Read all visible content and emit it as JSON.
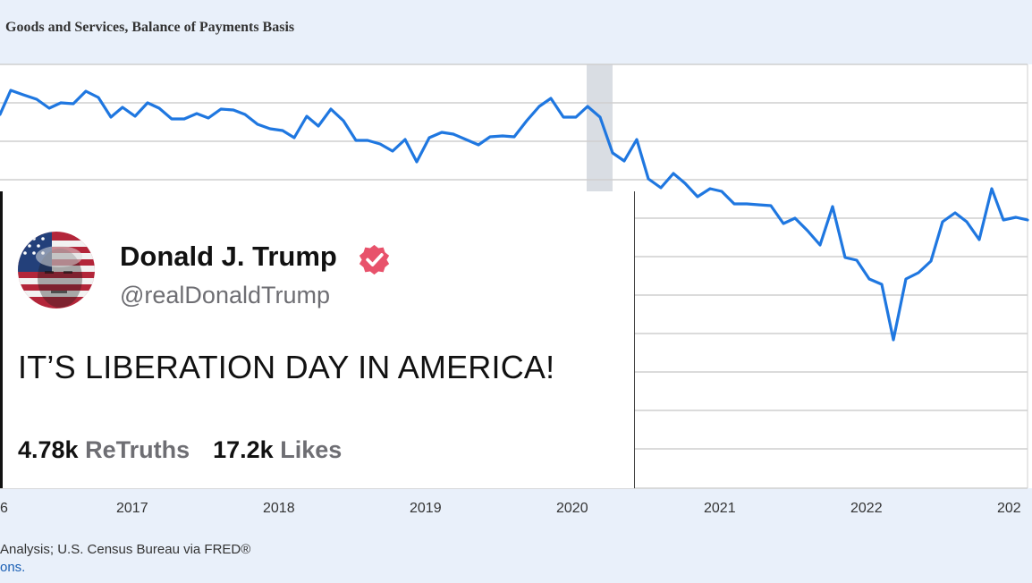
{
  "chart": {
    "title": "Goods and Services, Balance of Payments Basis",
    "x_tick_labels": [
      "6",
      "2017",
      "2018",
      "2019",
      "2020",
      "2021",
      "2022",
      "202"
    ],
    "line_color": "#1f77e0",
    "recession_color": "#d9dde3",
    "grid_color": "#cfcfcf"
  },
  "footer": {
    "source_text": "Analysis; U.S. Census Bureau via FRED®",
    "link_text": "ons."
  },
  "tweet": {
    "author_name": "Donald J. Trump",
    "handle": "@realDonaldTrump",
    "text": "IT’S LIBERATION DAY IN AMERICA!",
    "retruths_count": "4.78k",
    "retruths_label": "ReTruths",
    "likes_count": "17.2k",
    "likes_label": "Likes",
    "badge_color": "#e8526b"
  }
}
